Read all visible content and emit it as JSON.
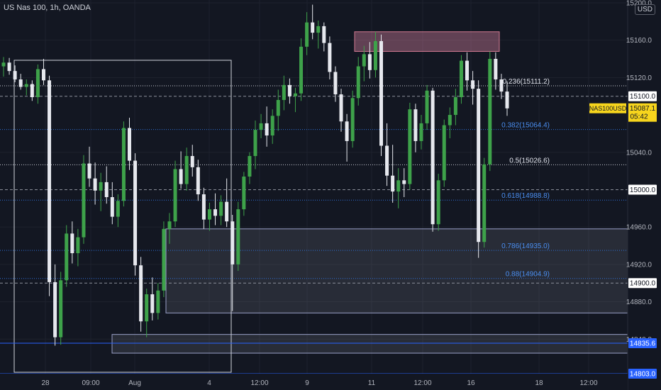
{
  "title": "US Nas 100, 1h, OANDA",
  "currency": "USD",
  "symbol_label": "NAS100USD",
  "last_price": "15087.1",
  "countdown": "05:42",
  "colors": {
    "background": "#131722",
    "up": "#26a69a",
    "up_bright": "#2e9b3a",
    "down": "#e0e3eb",
    "grid": "#1e222d",
    "axis_text": "#d1d4dc",
    "dotted": "#8b8f9a",
    "fib_blue": "#2f6fd6",
    "rect_border": "#9aa0c8",
    "rect_fill": "rgba(120,123,134,0.22)",
    "red_fill": "rgba(244,143,177,0.35)",
    "red_border": "#d47a92",
    "blue_line": "#2962ff",
    "price_badge_bg": "#f7d51d",
    "white_box": "#d1d4dc"
  },
  "chart_data": {
    "type": "candlestick",
    "instrument": "US Nas 100",
    "timeframe": "1h",
    "y_axis": {
      "ticks": [
        "15200.0",
        "15160.0",
        "15120.0",
        "15040.0",
        "14960.0",
        "14920.0",
        "14880.0",
        "14840.0"
      ],
      "ylim": [
        14803,
        15203
      ],
      "highlighted_levels": [
        {
          "value": 15100.0,
          "label": "15100.0",
          "style": "dashed"
        },
        {
          "value": 15000.0,
          "label": "15000.0",
          "style": "dashed"
        },
        {
          "value": 14900.0,
          "label": "14900.0",
          "style": "dashed"
        },
        {
          "value": 14835.6,
          "label": "14835.6",
          "style": "blue"
        },
        {
          "value": 14803.0,
          "label": "14803.0",
          "style": "blue"
        }
      ]
    },
    "x_axis": {
      "ticks": [
        "28",
        "09:00",
        "Aug",
        "4",
        "12:00",
        "9",
        "11",
        "12:00",
        "16",
        "18",
        "12:00"
      ]
    },
    "fib_levels": [
      {
        "ratio": "0.236",
        "price": 15111.2,
        "label": "0.236(15111.2)",
        "color": "white"
      },
      {
        "ratio": "0.382",
        "price": 15064.4,
        "label": "0.382(15064.4)",
        "color": "blue"
      },
      {
        "ratio": "0.5",
        "price": 15026.6,
        "label": "0.5(15026.6)",
        "color": "white"
      },
      {
        "ratio": "0.618",
        "price": 14988.8,
        "label": "0.618(14988.8)",
        "color": "blue"
      },
      {
        "ratio": "0.786",
        "price": 14935.0,
        "label": "0.786(14935.0)",
        "color": "blue"
      },
      {
        "ratio": "0.88",
        "price": 14904.9,
        "label": "0.88(14904.9)",
        "color": "blue"
      }
    ],
    "zones": [
      {
        "kind": "supply",
        "top": 15169,
        "bottom": 15148
      },
      {
        "kind": "demand",
        "top": 14958,
        "bottom": 14868
      },
      {
        "kind": "demand",
        "top": 14845,
        "bottom": 14825
      }
    ],
    "candles": [
      [
        15132,
        15142,
        15121,
        15136
      ],
      [
        15136,
        15141,
        15123,
        15127
      ],
      [
        15127,
        15133,
        15115,
        15118
      ],
      [
        15118,
        15124,
        15107,
        15110
      ],
      [
        15110,
        15118,
        15101,
        15113
      ],
      [
        15113,
        15117,
        15095,
        15099
      ],
      [
        15099,
        15134,
        15092,
        15129
      ],
      [
        15129,
        15140,
        15112,
        15117
      ],
      [
        15117,
        15122,
        14886,
        14901
      ],
      [
        14901,
        14920,
        14833,
        14842
      ],
      [
        14842,
        14912,
        14834,
        14903
      ],
      [
        14903,
        14962,
        14896,
        14953
      ],
      [
        14953,
        14966,
        14921,
        14932
      ],
      [
        14932,
        14958,
        14918,
        14949
      ],
      [
        14949,
        15037,
        14942,
        15028
      ],
      [
        15028,
        15046,
        15003,
        15012
      ],
      [
        15012,
        15029,
        14984,
        14999
      ],
      [
        14999,
        15018,
        14977,
        15008
      ],
      [
        15008,
        15025,
        14985,
        14992
      ],
      [
        14992,
        15008,
        14963,
        14971
      ],
      [
        14971,
        14995,
        14960,
        14988
      ],
      [
        14988,
        15073,
        14982,
        15066
      ],
      [
        15066,
        15077,
        15021,
        15031
      ],
      [
        15031,
        15039,
        14908,
        14919
      ],
      [
        14919,
        14928,
        14848,
        14859
      ],
      [
        14859,
        14894,
        14842,
        14888
      ],
      [
        14888,
        14906,
        14860,
        14868
      ],
      [
        14868,
        14900,
        14861,
        14892
      ],
      [
        14892,
        14966,
        14885,
        14958
      ],
      [
        14958,
        14975,
        14942,
        14966
      ],
      [
        14966,
        15031,
        14960,
        15022
      ],
      [
        15022,
        15041,
        15001,
        15006
      ],
      [
        15006,
        15045,
        14999,
        15036
      ],
      [
        15036,
        15048,
        15014,
        15024
      ],
      [
        15024,
        15032,
        14988,
        14995
      ],
      [
        14995,
        15002,
        14958,
        14968
      ],
      [
        14968,
        14986,
        14956,
        14979
      ],
      [
        14979,
        14996,
        14962,
        14972
      ],
      [
        14972,
        14994,
        14962,
        14987
      ],
      [
        14987,
        15012,
        14960,
        14966
      ],
      [
        14966,
        14973,
        14870,
        14920
      ],
      [
        14920,
        14987,
        14913,
        14979
      ],
      [
        14979,
        15019,
        14972,
        15014
      ],
      [
        15014,
        15040,
        15006,
        15036
      ],
      [
        15036,
        15074,
        15022,
        15064
      ],
      [
        15064,
        15081,
        15055,
        15071
      ],
      [
        15071,
        15089,
        15046,
        15058
      ],
      [
        15058,
        15086,
        15049,
        15079
      ],
      [
        15079,
        15107,
        15063,
        15096
      ],
      [
        15096,
        15122,
        15085,
        15112
      ],
      [
        15112,
        15119,
        15092,
        15100
      ],
      [
        15100,
        15109,
        15083,
        15103
      ],
      [
        15103,
        15162,
        15095,
        15153
      ],
      [
        15153,
        15190,
        15144,
        15179
      ],
      [
        15179,
        15198,
        15161,
        15168
      ],
      [
        15168,
        15181,
        15151,
        15175
      ],
      [
        15175,
        15179,
        15148,
        15157
      ],
      [
        15157,
        15164,
        15118,
        15126
      ],
      [
        15126,
        15132,
        15094,
        15102
      ],
      [
        15102,
        15108,
        15062,
        15073
      ],
      [
        15073,
        15081,
        15030,
        15052
      ],
      [
        15052,
        15106,
        15045,
        15098
      ],
      [
        15098,
        15142,
        15090,
        15132
      ],
      [
        15132,
        15154,
        15116,
        15145
      ],
      [
        15145,
        15158,
        15119,
        15128
      ],
      [
        15128,
        15169,
        15120,
        15159
      ],
      [
        15159,
        15166,
        15036,
        15047
      ],
      [
        15047,
        15071,
        15004,
        15015
      ],
      [
        15015,
        15048,
        14986,
        14998
      ],
      [
        14998,
        15023,
        14980,
        15010
      ],
      [
        15010,
        15023,
        14992,
        15006
      ],
      [
        15006,
        15093,
        15000,
        15086
      ],
      [
        15086,
        15092,
        15040,
        15052
      ],
      [
        15052,
        15080,
        15043,
        15071
      ],
      [
        15071,
        15112,
        15064,
        15106
      ],
      [
        15106,
        15109,
        14955,
        14963
      ],
      [
        14963,
        15017,
        14956,
        15010
      ],
      [
        15010,
        15075,
        15003,
        15069
      ],
      [
        15069,
        15088,
        15055,
        15080
      ],
      [
        15080,
        15108,
        15069,
        15099
      ],
      [
        15099,
        15144,
        15092,
        15138
      ],
      [
        15138,
        15147,
        15106,
        15117
      ],
      [
        15117,
        15127,
        15091,
        15108
      ],
      [
        15108,
        15117,
        14927,
        14944
      ],
      [
        14944,
        15034,
        14938,
        15027
      ],
      [
        15027,
        15148,
        15020,
        15140
      ],
      [
        15140,
        15147,
        15107,
        15118
      ],
      [
        15118,
        15124,
        15097,
        15105
      ],
      [
        15105,
        15116,
        15079,
        15087
      ]
    ]
  }
}
